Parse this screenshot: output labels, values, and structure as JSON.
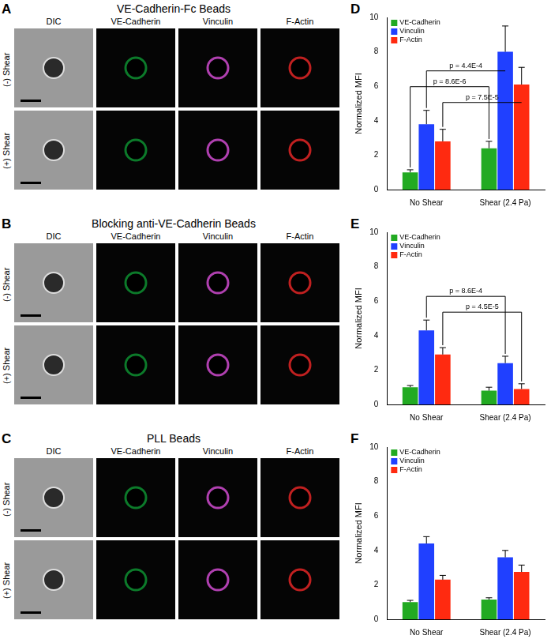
{
  "figure": {
    "image_panels": [
      {
        "letter": "A",
        "title": "VE-Cadherin-Fc Beads",
        "columns": [
          "DIC",
          "VE-Cadherin",
          "Vinculin",
          "F-Actin"
        ],
        "rows": [
          "(-) Shear",
          "(+) Shear"
        ]
      },
      {
        "letter": "B",
        "title": "Blocking anti-VE-Cadherin Beads",
        "columns": [
          "DIC",
          "VE-Cadherin",
          "Vinculin",
          "F-Actin"
        ],
        "rows": [
          "(-) Shear",
          "(+) Shear"
        ]
      },
      {
        "letter": "C",
        "title": "PLL Beads",
        "columns": [
          "DIC",
          "VE-Cadherin",
          "Vinculin",
          "F-Actin"
        ],
        "rows": [
          "(-) Shear",
          "(+) Shear"
        ]
      }
    ]
  },
  "chart_data": [
    {
      "type": "bar",
      "panel_label": "D",
      "y_label": "Normalized MFI",
      "categories": [
        "No Shear",
        "Shear (2.4 Pa)"
      ],
      "series": [
        {
          "name": "VE-Cadherin",
          "color": "#22aa22",
          "values": [
            1.0,
            2.4
          ],
          "errors": [
            0.15,
            0.4
          ]
        },
        {
          "name": "Vinculin",
          "color": "#2040ff",
          "values": [
            3.8,
            8.0
          ],
          "errors": [
            0.8,
            1.5
          ]
        },
        {
          "name": "F-Actin",
          "color": "#ff2a10",
          "values": [
            2.8,
            6.1
          ],
          "errors": [
            0.7,
            1.0
          ]
        }
      ],
      "annotations": [
        {
          "text": "p = 7.5E-5",
          "from": {
            "category": "No Shear",
            "series": "F-Actin"
          },
          "to": {
            "category": "Shear (2.4 Pa)",
            "series": "F-Actin"
          }
        },
        {
          "text": "p = 8.6E-6",
          "from": {
            "category": "No Shear",
            "series": "VE-Cadherin"
          },
          "to": {
            "category": "Shear (2.4 Pa)",
            "series": "VE-Cadherin"
          }
        },
        {
          "text": "p = 4.4E-4",
          "from": {
            "category": "No Shear",
            "series": "Vinculin"
          },
          "to": {
            "category": "Shear (2.4 Pa)",
            "series": "Vinculin"
          }
        }
      ],
      "ylim": [
        0,
        10
      ],
      "yticks": [
        0,
        2,
        4,
        6,
        8,
        10
      ],
      "grid": false,
      "legend": "upper left"
    },
    {
      "type": "bar",
      "panel_label": "E",
      "y_label": "Normalized MFI",
      "categories": [
        "No Shear",
        "Shear (2.4 Pa)"
      ],
      "series": [
        {
          "name": "VE-Cadherin",
          "color": "#22aa22",
          "values": [
            1.0,
            0.8
          ],
          "errors": [
            0.1,
            0.2
          ]
        },
        {
          "name": "Vinculin",
          "color": "#2040ff",
          "values": [
            4.3,
            2.4
          ],
          "errors": [
            0.6,
            0.4
          ]
        },
        {
          "name": "F-Actin",
          "color": "#ff2a10",
          "values": [
            2.9,
            0.9
          ],
          "errors": [
            0.4,
            0.3
          ]
        }
      ],
      "annotations": [
        {
          "text": "p = 4.5E-5",
          "from": {
            "category": "No Shear",
            "series": "F-Actin"
          },
          "to": {
            "category": "Shear (2.4 Pa)",
            "series": "F-Actin"
          }
        },
        {
          "text": "p = 8.6E-4",
          "from": {
            "category": "No Shear",
            "series": "Vinculin"
          },
          "to": {
            "category": "Shear (2.4 Pa)",
            "series": "Vinculin"
          }
        }
      ],
      "ylim": [
        0,
        10
      ],
      "yticks": [
        0,
        2,
        4,
        6,
        8,
        10
      ],
      "grid": false,
      "legend": "upper left"
    },
    {
      "type": "bar",
      "panel_label": "F",
      "y_label": "Normalized MFI",
      "categories": [
        "No Shear",
        "Shear (2.4 Pa)"
      ],
      "series": [
        {
          "name": "VE-Cadherin",
          "color": "#22aa22",
          "values": [
            1.0,
            1.15
          ],
          "errors": [
            0.1,
            0.1
          ]
        },
        {
          "name": "Vinculin",
          "color": "#2040ff",
          "values": [
            4.4,
            3.6
          ],
          "errors": [
            0.4,
            0.4
          ]
        },
        {
          "name": "F-Actin",
          "color": "#ff2a10",
          "values": [
            2.3,
            2.75
          ],
          "errors": [
            0.25,
            0.4
          ]
        }
      ],
      "ylim": [
        0,
        10
      ],
      "yticks": [
        0,
        2,
        4,
        6,
        8,
        10
      ],
      "grid": false,
      "legend": "upper left"
    }
  ]
}
